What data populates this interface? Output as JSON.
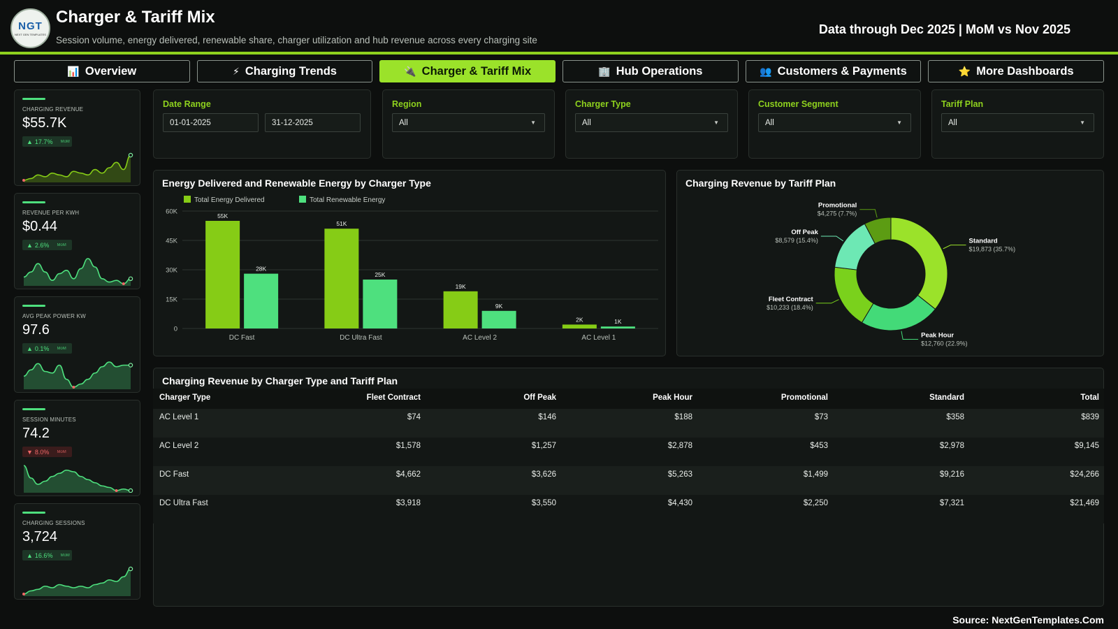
{
  "header": {
    "logo_text": "NGT",
    "logo_sub": "NEXT GEN TEMPLATES",
    "title": "Charger & Tariff Mix",
    "subtitle": "Session volume, energy delivered, renewable share, charger utilization and hub revenue across every charging site",
    "data_through": "Data through Dec 2025 | MoM vs Nov 2025"
  },
  "tabs": [
    {
      "icon": "📊",
      "icon_name": "bar-chart-icon",
      "label": "Overview"
    },
    {
      "icon": "⚡",
      "icon_name": "lightning-icon",
      "label": "Charging Trends"
    },
    {
      "icon": "🔌",
      "icon_name": "plug-icon",
      "label": "Charger & Tariff Mix",
      "active": true
    },
    {
      "icon": "🏢",
      "icon_name": "building-icon",
      "label": "Hub Operations"
    },
    {
      "icon": "👥",
      "icon_name": "people-icon",
      "label": "Customers & Payments"
    },
    {
      "icon": "⭐",
      "icon_name": "star-icon",
      "label": "More Dashboards"
    }
  ],
  "kpis": [
    {
      "label": "CHARGING REVENUE",
      "value": "$55.7K",
      "change": "17.7%",
      "direction": "up",
      "mom": "MoM",
      "trend": [
        2,
        3,
        5,
        4,
        6,
        5,
        4,
        7,
        6,
        5,
        8,
        6,
        9,
        12,
        8,
        16
      ]
    },
    {
      "label": "REVENUE PER KWH",
      "value": "$0.44",
      "change": "2.6%",
      "direction": "up",
      "mom": "MoM",
      "trend": [
        6,
        9,
        14,
        9,
        4,
        8,
        10,
        5,
        11,
        17,
        12,
        5,
        3,
        4,
        2,
        5
      ]
    },
    {
      "label": "AVG PEAK POWER KW",
      "value": "97.6",
      "change": "0.1%",
      "direction": "up",
      "mom": "MoM",
      "trend": [
        8,
        12,
        16,
        11,
        10,
        15,
        6,
        1,
        3,
        6,
        10,
        14,
        17,
        14,
        15,
        15
      ]
    },
    {
      "label": "SESSION MINUTES",
      "value": "74.2",
      "change": "8.0%",
      "direction": "down",
      "mom": "MoM",
      "trend": [
        17,
        9,
        5,
        7,
        10,
        12,
        14,
        13,
        10,
        8,
        6,
        4,
        3,
        1,
        2,
        1
      ]
    },
    {
      "label": "CHARGING SESSIONS",
      "value": "3,724",
      "change": "16.6%",
      "direction": "up",
      "mom": "MoM",
      "trend": [
        1,
        3,
        4,
        6,
        5,
        7,
        6,
        5,
        6,
        5,
        7,
        8,
        10,
        9,
        12,
        17
      ]
    }
  ],
  "filters": {
    "date_range": {
      "label": "Date Range",
      "start": "01-01-2025",
      "end": "31-12-2025"
    },
    "region": {
      "label": "Region",
      "value": "All"
    },
    "charger_type": {
      "label": "Charger Type",
      "value": "All"
    },
    "customer_segment": {
      "label": "Customer Segment",
      "value": "All"
    },
    "tariff_plan": {
      "label": "Tariff Plan",
      "value": "All"
    }
  },
  "panels": {
    "bar_title": "Energy Delivered and Renewable Energy by Charger Type",
    "donut_title": "Charging Revenue by Tariff Plan",
    "table_title": "Charging Revenue by Charger Type and Tariff Plan"
  },
  "colors": {
    "accent": "#9be22a",
    "energy": "#86cc16",
    "renewable": "#4ee07e",
    "bg": "#0d0f0e"
  },
  "chart_data": [
    {
      "type": "bar",
      "title": "Energy Delivered and Renewable Energy by Charger Type",
      "categories": [
        "DC Fast",
        "DC Ultra Fast",
        "AC Level 2",
        "AC Level 1"
      ],
      "series": [
        {
          "name": "Total Energy Delivered",
          "values": [
            55000,
            51000,
            19000,
            2000
          ],
          "labels": [
            "55K",
            "51K",
            "19K",
            "2K"
          ],
          "color": "#86cc16"
        },
        {
          "name": "Total Renewable Energy",
          "values": [
            28000,
            25000,
            9000,
            1000
          ],
          "labels": [
            "28K",
            "25K",
            "9K",
            "1K"
          ],
          "color": "#4ee07e"
        }
      ],
      "yticks": [
        "0",
        "15K",
        "30K",
        "45K",
        "60K"
      ],
      "ylim": [
        0,
        60000
      ],
      "grid": true,
      "legend": "top-left"
    },
    {
      "type": "pie",
      "title": "Charging Revenue by Tariff Plan",
      "slices": [
        {
          "name": "Standard",
          "value": 19873,
          "label": "$19,873 (35.7%)",
          "color": "#9be22a"
        },
        {
          "name": "Peak Hour",
          "value": 12760,
          "label": "$12,760 (22.9%)",
          "color": "#43da78"
        },
        {
          "name": "Fleet Contract",
          "value": 10233,
          "label": "$10,233 (18.4%)",
          "color": "#7ad11c"
        },
        {
          "name": "Off Peak",
          "value": 8579,
          "label": "$8,579 (15.4%)",
          "color": "#6de8b4"
        },
        {
          "name": "Promotional",
          "value": 4275,
          "label": "$4,275 (7.7%)",
          "color": "#5c9c13"
        }
      ]
    },
    {
      "type": "table",
      "title": "Charging Revenue by Charger Type and Tariff Plan",
      "columns": [
        "Charger Type",
        "Fleet Contract",
        "Off Peak",
        "Peak Hour",
        "Promotional",
        "Standard",
        "Total"
      ],
      "rows": [
        [
          "AC Level 1",
          "$74",
          "$146",
          "$188",
          "$73",
          "$358",
          "$839"
        ],
        [
          "AC Level 2",
          "$1,578",
          "$1,257",
          "$2,878",
          "$453",
          "$2,978",
          "$9,145"
        ],
        [
          "DC Fast",
          "$4,662",
          "$3,626",
          "$5,263",
          "$1,499",
          "$9,216",
          "$24,266"
        ],
        [
          "DC Ultra Fast",
          "$3,918",
          "$3,550",
          "$4,430",
          "$2,250",
          "$7,321",
          "$21,469"
        ]
      ]
    }
  ],
  "footer": {
    "source": "Source: NextGenTemplates.Com"
  }
}
